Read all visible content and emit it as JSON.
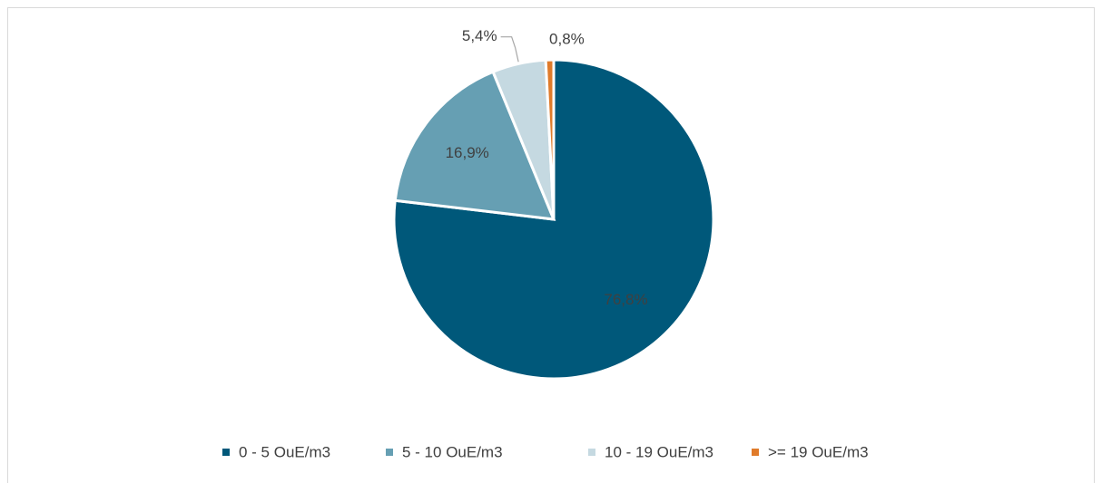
{
  "chart_data": {
    "type": "pie",
    "categories": [
      "0 - 5 OuE/m3",
      "5 - 10 OuE/m3",
      "10 - 19 OuE/m3",
      ">= 19 OuE/m3"
    ],
    "values": [
      76.8,
      16.9,
      5.4,
      0.8
    ],
    "value_labels": [
      "76,8%",
      "16,9%",
      "5,4%",
      "0,8%"
    ],
    "colors": [
      "#00587a",
      "#669fb3",
      "#c5d9e1",
      "#e07b2a"
    ],
    "legend": "bottom"
  }
}
